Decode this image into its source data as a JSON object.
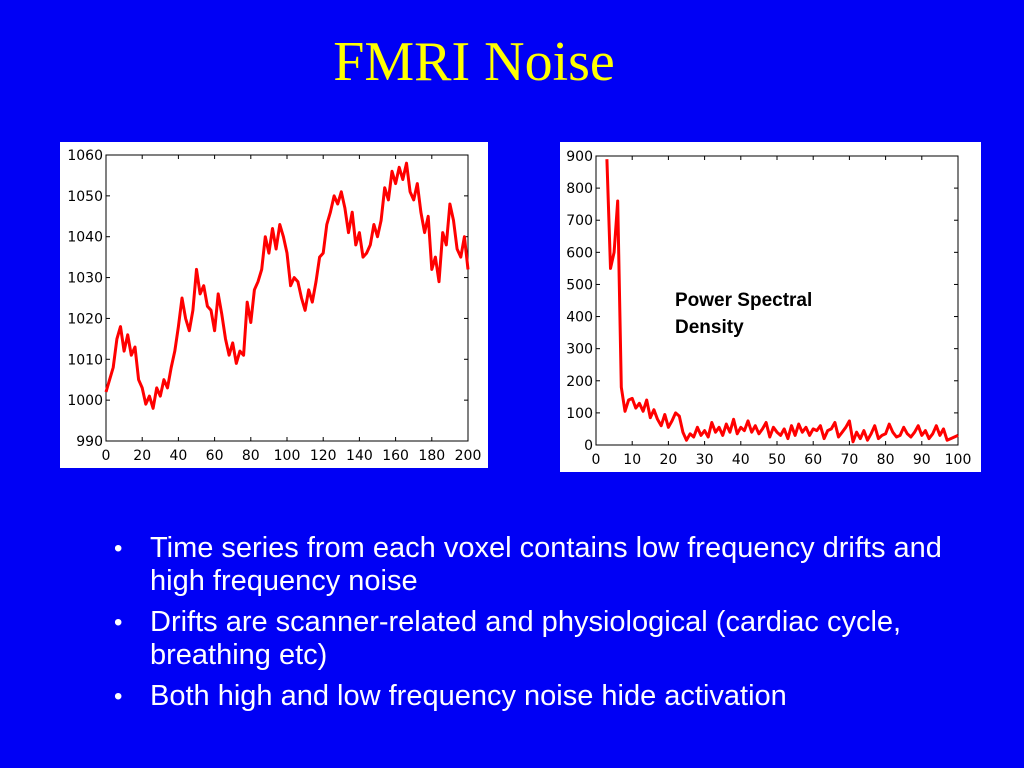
{
  "slide": {
    "title": "FMRI Noise",
    "psd_label": "Power Spectral Density",
    "bullets": [
      "Time series from each voxel contains low frequency drifts and high frequency noise",
      "Drifts are scanner-related and physiological (cardiac cycle, breathing etc)",
      "Both high and low frequency noise hide activation"
    ]
  },
  "colors": {
    "background": "#0000f5",
    "title": "#ffff00",
    "line": "#ff0000",
    "bullet_text": "#ffffff"
  },
  "chart_data": [
    {
      "type": "line",
      "title": "",
      "xlabel": "",
      "ylabel": "",
      "xlim": [
        0,
        200
      ],
      "ylim": [
        990,
        1060
      ],
      "xticks": [
        0,
        20,
        40,
        60,
        80,
        100,
        120,
        140,
        160,
        180,
        200
      ],
      "yticks": [
        990,
        1000,
        1010,
        1020,
        1030,
        1040,
        1050,
        1060
      ],
      "grid": false,
      "series": [
        {
          "x": [
            0,
            2,
            4,
            6,
            8,
            10,
            12,
            14,
            16,
            18,
            20,
            22,
            24,
            26,
            28,
            30,
            32,
            34,
            36,
            38,
            40,
            42,
            44,
            46,
            48,
            50,
            52,
            54,
            56,
            58,
            60,
            62,
            64,
            66,
            68,
            70,
            72,
            74,
            76,
            78,
            80,
            82,
            84,
            86,
            88,
            90,
            92,
            94,
            96,
            98,
            100,
            102,
            104,
            106,
            108,
            110,
            112,
            114,
            116,
            118,
            120,
            122,
            124,
            126,
            128,
            130,
            132,
            134,
            136,
            138,
            140,
            142,
            144,
            146,
            148,
            150,
            152,
            154,
            156,
            158,
            160,
            162,
            164,
            166,
            168,
            170,
            172,
            174,
            176,
            178,
            180,
            182,
            184,
            186,
            188,
            190,
            192,
            194,
            196,
            198,
            200
          ],
          "y": [
            1002,
            1005,
            1008,
            1015,
            1018,
            1012,
            1016,
            1011,
            1013,
            1005,
            1003,
            999,
            1001,
            998,
            1003,
            1001,
            1005,
            1003,
            1008,
            1012,
            1018,
            1025,
            1020,
            1017,
            1022,
            1032,
            1026,
            1028,
            1023,
            1022,
            1017,
            1026,
            1021,
            1015,
            1011,
            1014,
            1009,
            1012,
            1011,
            1024,
            1019,
            1027,
            1029,
            1032,
            1040,
            1036,
            1042,
            1037,
            1043,
            1040,
            1036,
            1028,
            1030,
            1029,
            1025,
            1022,
            1027,
            1024,
            1029,
            1035,
            1036,
            1043,
            1046,
            1050,
            1048,
            1051,
            1047,
            1041,
            1046,
            1038,
            1041,
            1035,
            1036,
            1038,
            1043,
            1040,
            1044,
            1052,
            1049,
            1056,
            1053,
            1057,
            1054,
            1058,
            1051,
            1049,
            1053,
            1046,
            1041,
            1045,
            1032,
            1035,
            1029,
            1041,
            1038,
            1048,
            1044,
            1037,
            1035,
            1040,
            1032
          ]
        }
      ]
    },
    {
      "type": "line",
      "title": "",
      "xlabel": "",
      "ylabel": "",
      "xlim": [
        0,
        100
      ],
      "ylim": [
        0,
        900
      ],
      "xticks": [
        0,
        10,
        20,
        30,
        40,
        50,
        60,
        70,
        80,
        90,
        100
      ],
      "yticks": [
        0,
        100,
        200,
        300,
        400,
        500,
        600,
        700,
        800,
        900
      ],
      "grid": false,
      "series": [
        {
          "x": [
            3,
            4,
            5,
            6,
            7,
            8,
            9,
            10,
            11,
            12,
            13,
            14,
            15,
            16,
            17,
            18,
            19,
            20,
            21,
            22,
            23,
            24,
            25,
            26,
            27,
            28,
            29,
            30,
            31,
            32,
            33,
            34,
            35,
            36,
            37,
            38,
            39,
            40,
            41,
            42,
            43,
            44,
            45,
            46,
            47,
            48,
            49,
            50,
            51,
            52,
            53,
            54,
            55,
            56,
            57,
            58,
            59,
            60,
            61,
            62,
            63,
            64,
            65,
            66,
            67,
            68,
            69,
            70,
            71,
            72,
            73,
            74,
            75,
            76,
            77,
            78,
            79,
            80,
            81,
            82,
            83,
            84,
            85,
            86,
            87,
            88,
            89,
            90,
            91,
            92,
            93,
            94,
            95,
            96,
            97,
            98,
            99,
            100
          ],
          "y": [
            890,
            550,
            600,
            760,
            180,
            105,
            140,
            145,
            115,
            130,
            105,
            140,
            85,
            110,
            80,
            60,
            95,
            55,
            75,
            100,
            90,
            40,
            15,
            35,
            25,
            55,
            30,
            45,
            25,
            70,
            40,
            55,
            30,
            65,
            40,
            80,
            35,
            55,
            45,
            75,
            40,
            60,
            35,
            50,
            70,
            25,
            55,
            40,
            30,
            50,
            20,
            60,
            30,
            65,
            40,
            55,
            30,
            50,
            45,
            60,
            20,
            45,
            50,
            70,
            25,
            40,
            55,
            75,
            10,
            40,
            20,
            45,
            15,
            35,
            60,
            20,
            30,
            35,
            65,
            40,
            25,
            30,
            55,
            35,
            25,
            40,
            60,
            30,
            45,
            20,
            35,
            60,
            30,
            50,
            15,
            20,
            25,
            30
          ]
        }
      ]
    }
  ]
}
